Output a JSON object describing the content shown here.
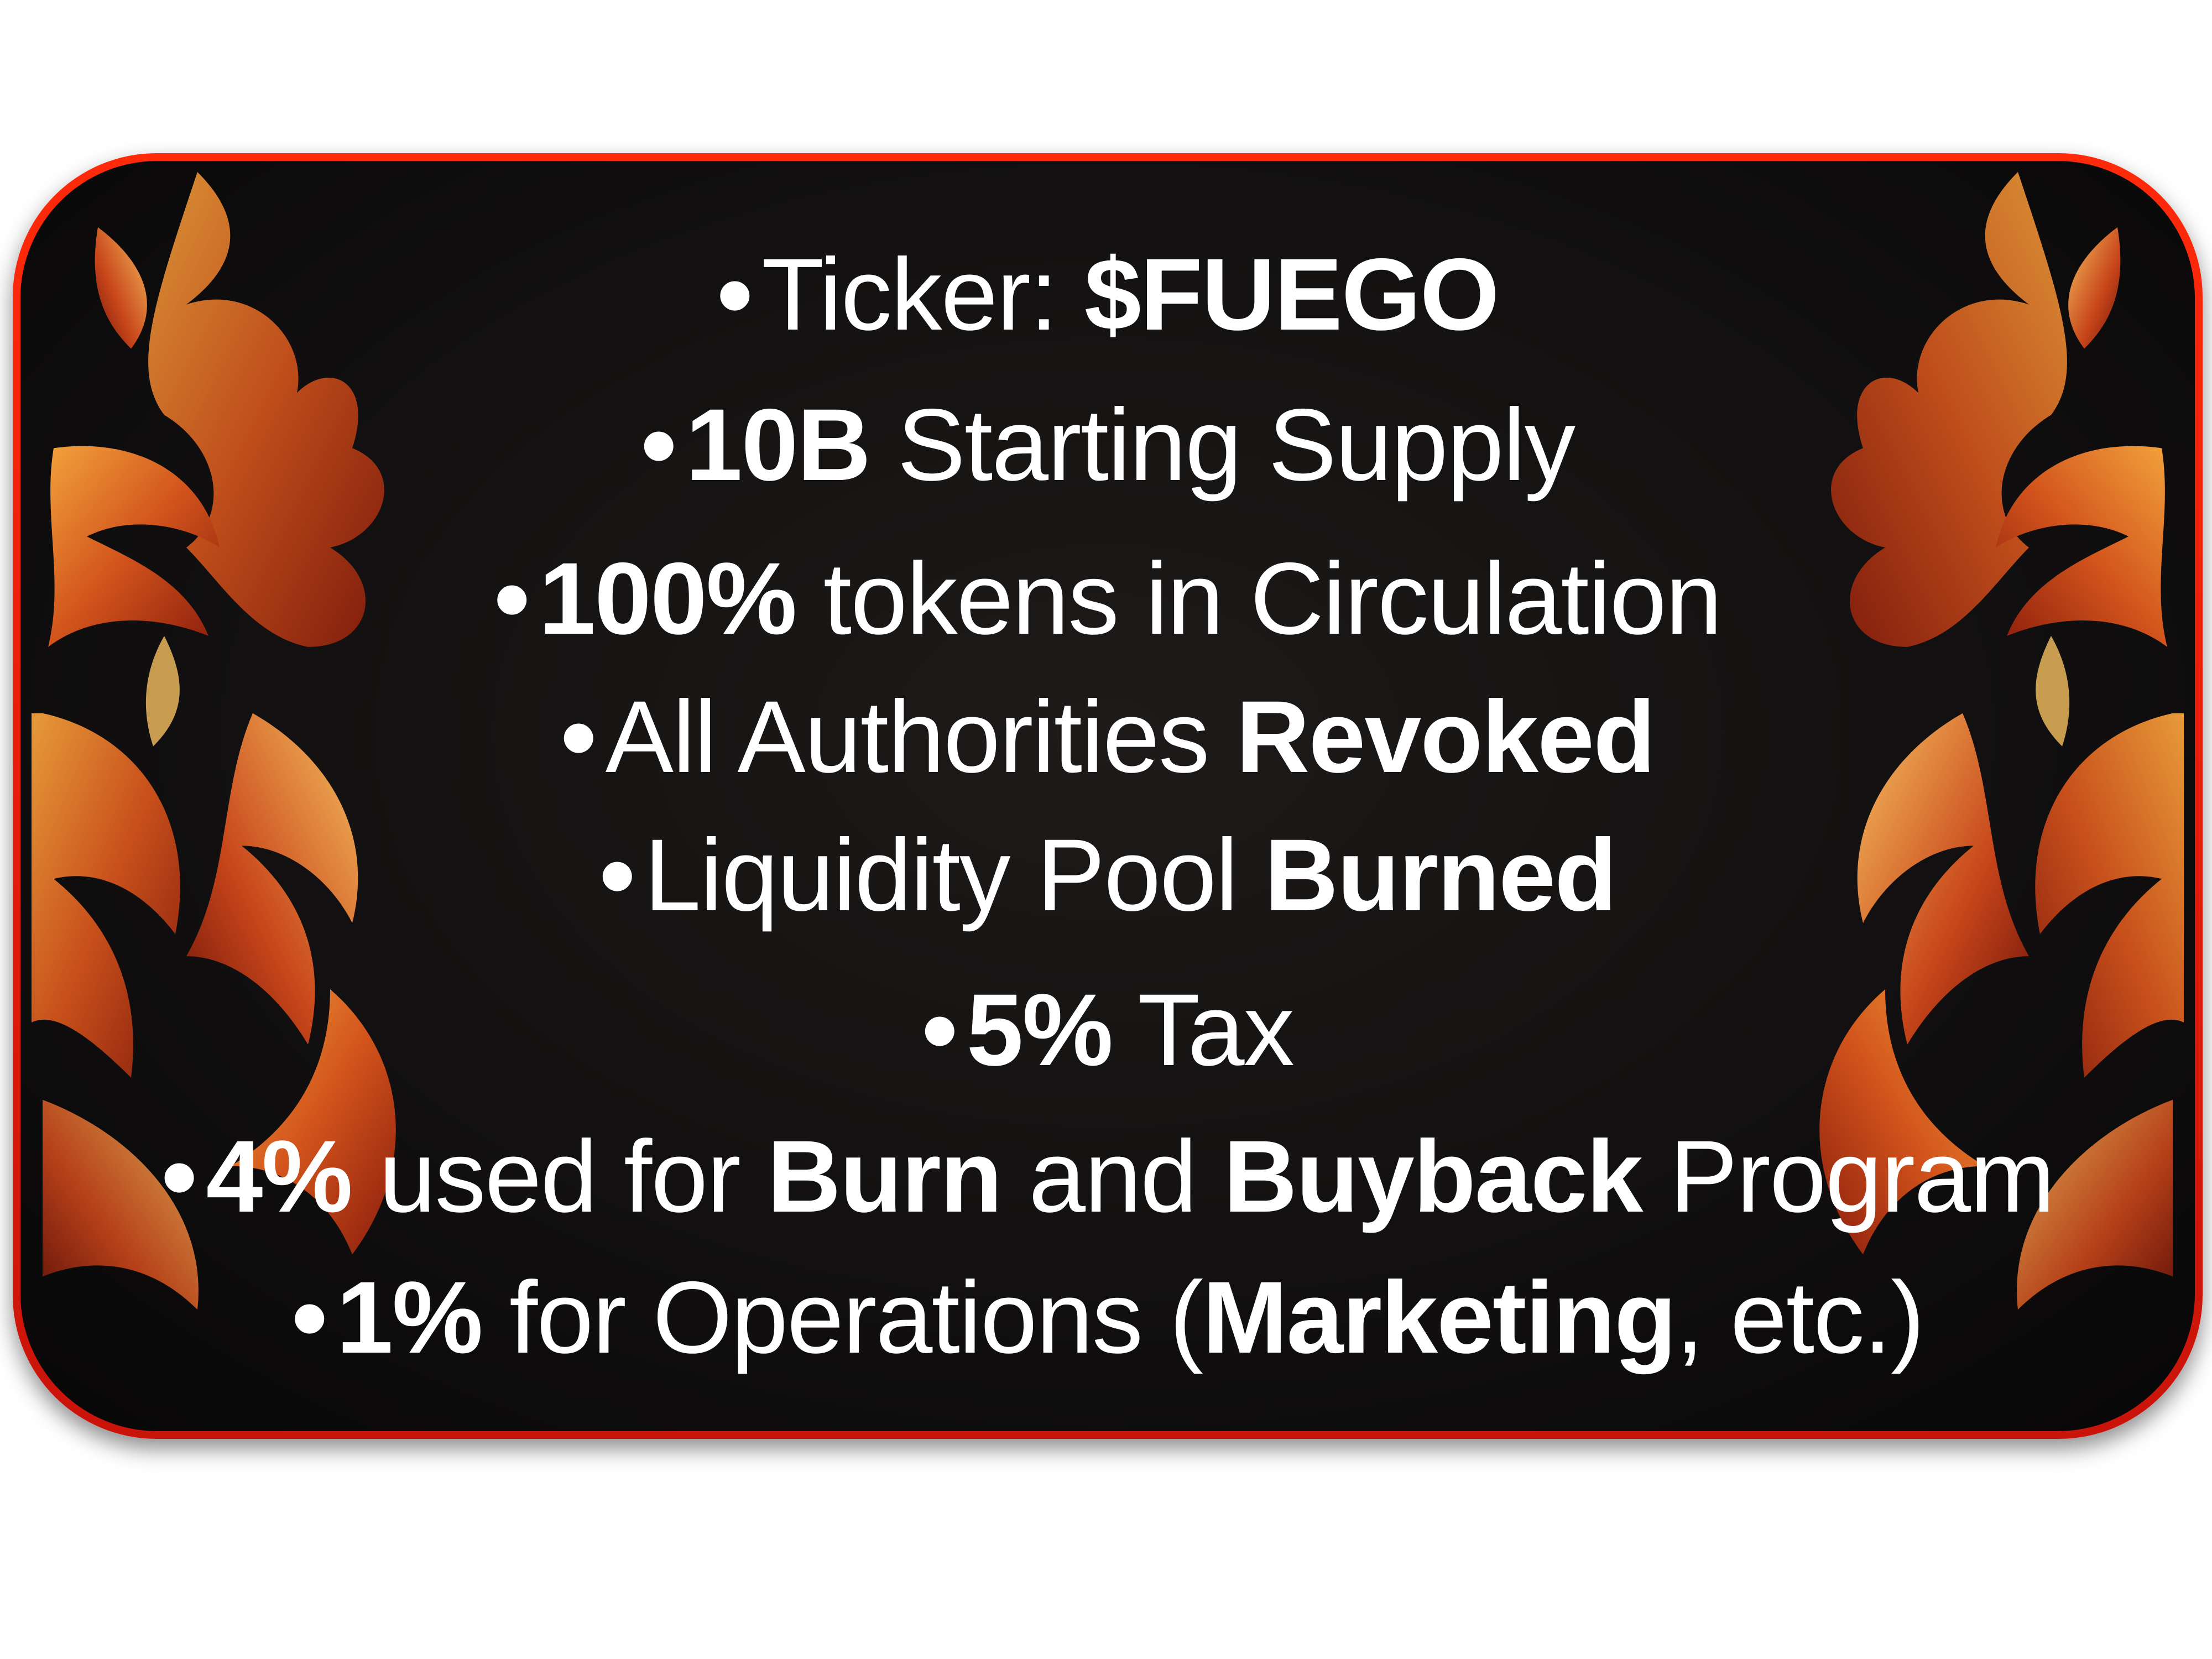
{
  "colors": {
    "border": "#ff2a0a",
    "background": "#121010",
    "text": "#ffffff",
    "flame_dark": "#8a1c0c",
    "flame_mid": "#d2541c",
    "flame_light": "#f2a23c"
  },
  "decorations": {
    "left_icon": "phoenix-flame-icon",
    "right_icon": "phoenix-flame-icon"
  },
  "bullet": "•",
  "lines": [
    {
      "parts": [
        {
          "text": "Ticker: ",
          "bold": false
        },
        {
          "text": "$FUEGO",
          "bold": true
        }
      ]
    },
    {
      "parts": [
        {
          "text": "10B",
          "bold": true
        },
        {
          "text": " Starting Supply",
          "bold": false
        }
      ]
    },
    {
      "parts": [
        {
          "text": "100%",
          "bold": true
        },
        {
          "text": " tokens in Circulation",
          "bold": false
        }
      ]
    },
    {
      "parts": [
        {
          "text": "All Authorities ",
          "bold": false
        },
        {
          "text": "Revoked",
          "bold": true
        }
      ]
    },
    {
      "parts": [
        {
          "text": "Liquidity Pool ",
          "bold": false
        },
        {
          "text": "Burned",
          "bold": true
        }
      ]
    },
    {
      "parts": [
        {
          "text": "5%",
          "bold": true
        },
        {
          "text": " Tax",
          "bold": false
        }
      ]
    },
    {
      "parts": [
        {
          "text": "4%",
          "bold": true
        },
        {
          "text": " used for ",
          "bold": false
        },
        {
          "text": "Burn",
          "bold": true
        },
        {
          "text": " and ",
          "bold": false
        },
        {
          "text": "Buyback",
          "bold": true
        },
        {
          "text": " Program",
          "bold": false
        }
      ]
    },
    {
      "parts": [
        {
          "text": "1%",
          "bold": true
        },
        {
          "text": " for Operations (",
          "bold": false
        },
        {
          "text": "Marketing",
          "bold": true
        },
        {
          "text": ", etc.)",
          "bold": false
        }
      ]
    }
  ]
}
